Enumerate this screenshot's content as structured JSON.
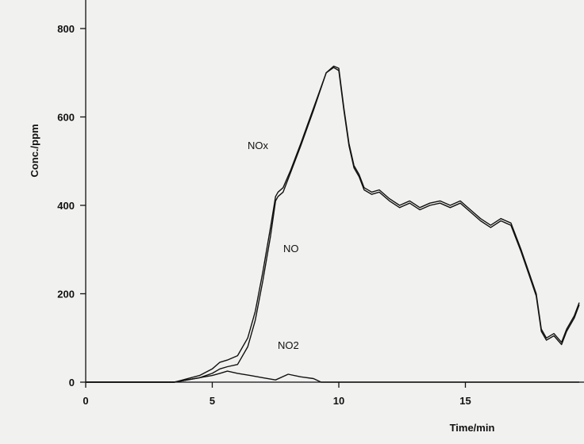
{
  "chart_data": {
    "type": "line",
    "title": "",
    "xlabel": "Time/min",
    "ylabel": "Conc./ppm",
    "xlim": [
      0,
      19.5
    ],
    "ylim": [
      0,
      860
    ],
    "x_ticks": [
      0,
      5,
      10,
      15
    ],
    "y_ticks": [
      0,
      200,
      400,
      600,
      800
    ],
    "x_tick_labels": [
      "0",
      "5",
      "10",
      "15"
    ],
    "y_tick_labels": [
      "0",
      "200",
      "400",
      "600",
      "800"
    ],
    "grid": false,
    "legend": "none",
    "series": [
      {
        "name": "NOx",
        "x": [
          0,
          3.5,
          4.5,
          5.0,
          5.3,
          5.6,
          6.0,
          6.4,
          6.7,
          7.0,
          7.3,
          7.5,
          7.6,
          7.8,
          8.1,
          8.5,
          9.0,
          9.5,
          9.8,
          10.0,
          10.2,
          10.4,
          10.6,
          10.8,
          11.0,
          11.3,
          11.6,
          12.0,
          12.4,
          12.8,
          13.2,
          13.6,
          14.0,
          14.4,
          14.8,
          15.2,
          15.6,
          16.0,
          16.4,
          16.8,
          17.2,
          17.5,
          17.8,
          18.0,
          18.2,
          18.5,
          18.8,
          19.0,
          19.3,
          19.5
        ],
        "y": [
          0,
          0,
          15,
          30,
          45,
          50,
          60,
          100,
          160,
          250,
          350,
          420,
          430,
          440,
          480,
          540,
          620,
          700,
          715,
          710,
          620,
          540,
          490,
          470,
          440,
          430,
          435,
          415,
          400,
          410,
          395,
          405,
          410,
          400,
          410,
          390,
          370,
          355,
          370,
          360,
          300,
          250,
          200,
          120,
          100,
          110,
          90,
          120,
          150,
          180
        ]
      },
      {
        "name": "NO",
        "x": [
          0,
          3.5,
          4.5,
          5.0,
          5.3,
          5.6,
          6.0,
          6.4,
          6.7,
          7.0,
          7.3,
          7.5,
          7.6,
          7.8,
          8.1,
          8.5,
          9.0,
          9.5,
          9.8,
          10.0,
          10.2,
          10.4,
          10.6,
          10.8,
          11.0,
          11.3,
          11.6,
          12.0,
          12.4,
          12.8,
          13.2,
          13.6,
          14.0,
          14.4,
          14.8,
          15.2,
          15.6,
          16.0,
          16.4,
          16.8,
          17.2,
          17.5,
          17.8,
          18.0,
          18.2,
          18.5,
          18.8,
          19.0,
          19.3,
          19.5
        ],
        "y": [
          0,
          0,
          10,
          20,
          30,
          35,
          40,
          80,
          140,
          230,
          330,
          410,
          420,
          430,
          475,
          535,
          615,
          700,
          712,
          705,
          615,
          535,
          485,
          465,
          435,
          425,
          430,
          410,
          395,
          405,
          390,
          400,
          405,
          395,
          405,
          385,
          365,
          350,
          365,
          355,
          295,
          245,
          195,
          115,
          95,
          105,
          85,
          115,
          145,
          175
        ]
      },
      {
        "name": "NO2",
        "x": [
          0,
          3.5,
          4.5,
          5.0,
          5.3,
          5.6,
          6.0,
          6.5,
          7.0,
          7.5,
          8.0,
          8.5,
          9.0,
          9.3,
          10.0,
          19.5
        ],
        "y": [
          0,
          0,
          10,
          15,
          20,
          25,
          20,
          15,
          10,
          5,
          18,
          12,
          8,
          0,
          0,
          0
        ]
      }
    ]
  }
}
